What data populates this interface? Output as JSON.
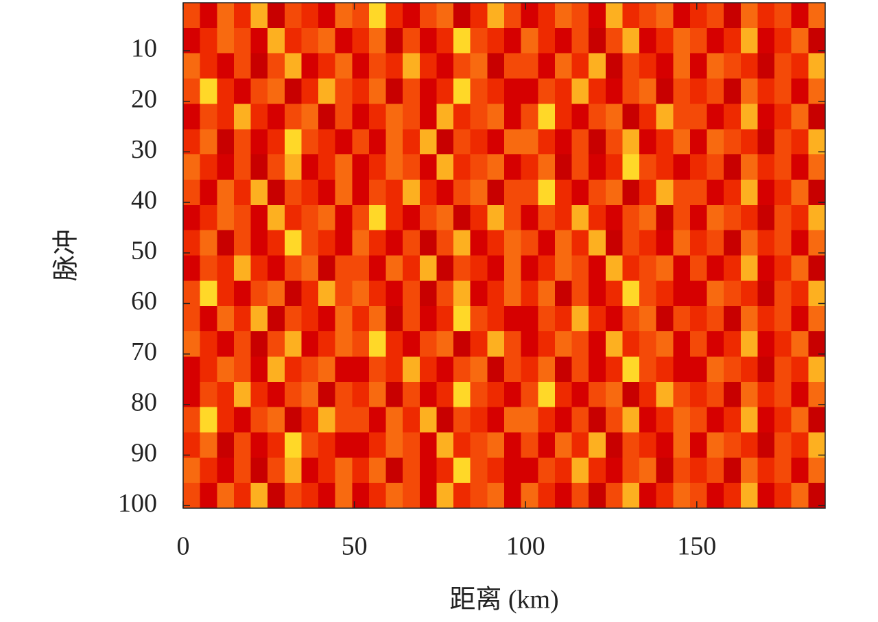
{
  "chart_data": {
    "type": "heatmap",
    "xlabel": "距离 (km)",
    "ylabel": "脉冲",
    "xlim": [
      0,
      187.5
    ],
    "ylim": [
      0.5,
      100.5
    ],
    "y_inverted": true,
    "xticks": [
      0,
      50,
      100,
      150
    ],
    "yticks": [
      10,
      20,
      30,
      40,
      50,
      60,
      70,
      80,
      90,
      100
    ],
    "grid": false,
    "colormap": [
      "#c80000",
      "#d60000",
      "#e41200",
      "#ee2a00",
      "#f44a08",
      "#f86a10",
      "#fb8c18",
      "#fdb020",
      "#ffd828"
    ],
    "z": [
      [
        5,
        3,
        6,
        4,
        7,
        2,
        5,
        4,
        3,
        6,
        5,
        8,
        4,
        3,
        5,
        6,
        2,
        4,
        7,
        5,
        3,
        4,
        6,
        5,
        3,
        7,
        4,
        5,
        6,
        3,
        4,
        5,
        2,
        6,
        4,
        5,
        3,
        6
      ],
      [
        3,
        4,
        6,
        5,
        3,
        7,
        4,
        5,
        6,
        3,
        4,
        6,
        2,
        5,
        3,
        4,
        8,
        5,
        4,
        3,
        6,
        4,
        3,
        5,
        2,
        5,
        7,
        3,
        4,
        6,
        5,
        3,
        4,
        7,
        3,
        4,
        6,
        2
      ],
      [
        6,
        4,
        3,
        5,
        2,
        5,
        7,
        3,
        4,
        6,
        3,
        5,
        4,
        7,
        4,
        3,
        5,
        6,
        2,
        5,
        5,
        3,
        6,
        4,
        7,
        2,
        5,
        4,
        3,
        6,
        3,
        6,
        5,
        4,
        2,
        5,
        4,
        7
      ],
      [
        5,
        8,
        4,
        3,
        5,
        6,
        2,
        4,
        7,
        5,
        4,
        6,
        2,
        5,
        3,
        4,
        8,
        5,
        4,
        3,
        3,
        5,
        4,
        7,
        4,
        3,
        5,
        6,
        2,
        5,
        4,
        5,
        2,
        6,
        4,
        5,
        3,
        6
      ],
      [
        3,
        5,
        4,
        7,
        4,
        3,
        5,
        6,
        2,
        5,
        3,
        4,
        6,
        5,
        3,
        7,
        4,
        5,
        6,
        3,
        5,
        8,
        4,
        3,
        5,
        6,
        2,
        4,
        7,
        5,
        5,
        3,
        4,
        7,
        3,
        4,
        6,
        2
      ],
      [
        4,
        6,
        2,
        5,
        3,
        4,
        8,
        5,
        4,
        3,
        5,
        3,
        6,
        4,
        7,
        2,
        5,
        4,
        3,
        6,
        6,
        4,
        3,
        5,
        2,
        5,
        7,
        3,
        4,
        6,
        3,
        6,
        5,
        4,
        2,
        5,
        4,
        7
      ],
      [
        6,
        4,
        3,
        5,
        2,
        5,
        7,
        3,
        4,
        6,
        3,
        4,
        6,
        5,
        3,
        7,
        4,
        5,
        6,
        3,
        4,
        6,
        2,
        5,
        3,
        4,
        8,
        5,
        4,
        3,
        4,
        5,
        2,
        6,
        4,
        5,
        3,
        6
      ],
      [
        5,
        3,
        6,
        4,
        7,
        2,
        5,
        4,
        3,
        6,
        3,
        5,
        4,
        7,
        4,
        3,
        5,
        6,
        2,
        5,
        5,
        8,
        4,
        3,
        5,
        6,
        2,
        4,
        7,
        5,
        5,
        3,
        4,
        7,
        3,
        4,
        6,
        2
      ],
      [
        3,
        4,
        6,
        5,
        3,
        7,
        4,
        5,
        6,
        3,
        5,
        8,
        4,
        3,
        5,
        6,
        2,
        4,
        7,
        5,
        3,
        5,
        4,
        7,
        4,
        3,
        5,
        6,
        2,
        5,
        3,
        6,
        5,
        4,
        2,
        5,
        4,
        7
      ],
      [
        4,
        6,
        2,
        5,
        3,
        4,
        8,
        5,
        4,
        3,
        6,
        4,
        3,
        5,
        2,
        5,
        7,
        3,
        4,
        6,
        5,
        3,
        6,
        4,
        7,
        2,
        5,
        4,
        3,
        6,
        4,
        5,
        2,
        6,
        4,
        5,
        3,
        6
      ],
      [
        3,
        5,
        4,
        7,
        4,
        3,
        5,
        6,
        2,
        5,
        5,
        3,
        6,
        4,
        7,
        2,
        5,
        4,
        3,
        6,
        3,
        4,
        6,
        5,
        3,
        7,
        4,
        5,
        6,
        3,
        5,
        3,
        4,
        7,
        3,
        4,
        6,
        2
      ],
      [
        5,
        8,
        4,
        3,
        5,
        6,
        2,
        4,
        7,
        5,
        6,
        4,
        3,
        5,
        2,
        5,
        7,
        3,
        4,
        6,
        4,
        6,
        2,
        5,
        3,
        4,
        8,
        5,
        4,
        3,
        3,
        6,
        5,
        4,
        2,
        5,
        4,
        7
      ],
      [
        5,
        3,
        6,
        4,
        7,
        2,
        5,
        4,
        3,
        6,
        4,
        6,
        2,
        5,
        3,
        4,
        8,
        5,
        4,
        3,
        3,
        5,
        4,
        7,
        4,
        3,
        5,
        6,
        2,
        5,
        4,
        5,
        2,
        6,
        4,
        5,
        3,
        6
      ],
      [
        6,
        4,
        3,
        5,
        2,
        5,
        7,
        3,
        4,
        6,
        5,
        8,
        4,
        3,
        5,
        6,
        2,
        4,
        7,
        5,
        3,
        4,
        6,
        5,
        3,
        7,
        4,
        5,
        6,
        3,
        5,
        3,
        4,
        7,
        3,
        4,
        6,
        2
      ],
      [
        3,
        4,
        6,
        5,
        3,
        7,
        4,
        5,
        6,
        3,
        3,
        5,
        4,
        7,
        4,
        3,
        5,
        6,
        2,
        5,
        4,
        6,
        2,
        5,
        3,
        4,
        8,
        5,
        4,
        3,
        3,
        6,
        5,
        4,
        2,
        5,
        4,
        7
      ],
      [
        3,
        5,
        4,
        7,
        4,
        3,
        5,
        6,
        2,
        5,
        4,
        6,
        2,
        5,
        3,
        4,
        8,
        5,
        4,
        3,
        5,
        8,
        4,
        3,
        5,
        6,
        2,
        4,
        7,
        5,
        4,
        5,
        2,
        6,
        4,
        5,
        3,
        6
      ],
      [
        5,
        8,
        4,
        3,
        5,
        6,
        2,
        4,
        7,
        5,
        5,
        3,
        6,
        4,
        7,
        2,
        5,
        4,
        3,
        6,
        6,
        4,
        3,
        5,
        2,
        5,
        7,
        3,
        4,
        6,
        5,
        3,
        4,
        7,
        3,
        4,
        6,
        2
      ],
      [
        4,
        6,
        2,
        5,
        3,
        4,
        8,
        5,
        4,
        3,
        3,
        4,
        6,
        5,
        3,
        7,
        4,
        5,
        6,
        3,
        5,
        3,
        6,
        4,
        7,
        2,
        5,
        4,
        3,
        6,
        3,
        6,
        5,
        4,
        2,
        5,
        4,
        7
      ],
      [
        6,
        4,
        3,
        5,
        2,
        5,
        7,
        3,
        4,
        6,
        4,
        6,
        2,
        5,
        3,
        4,
        8,
        5,
        4,
        3,
        3,
        5,
        4,
        7,
        4,
        3,
        5,
        6,
        2,
        5,
        4,
        5,
        2,
        6,
        4,
        5,
        3,
        6
      ],
      [
        5,
        3,
        6,
        4,
        7,
        2,
        5,
        4,
        3,
        6,
        3,
        4,
        6,
        5,
        3,
        7,
        4,
        5,
        6,
        3,
        6,
        4,
        3,
        5,
        2,
        5,
        7,
        3,
        4,
        6,
        5,
        3,
        4,
        7,
        3,
        4,
        6,
        2
      ]
    ]
  }
}
